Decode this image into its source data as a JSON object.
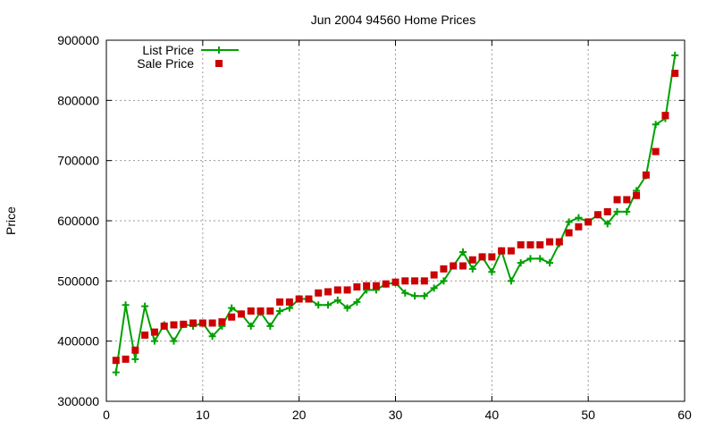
{
  "chart_data": {
    "type": "line",
    "title": "Jun 2004 94560 Home Prices",
    "xlabel": "",
    "ylabel": "Price",
    "xlim": [
      0,
      60
    ],
    "ylim": [
      300000,
      900000
    ],
    "x_ticks": [
      0,
      10,
      20,
      30,
      40,
      50,
      60
    ],
    "y_ticks": [
      300000,
      400000,
      500000,
      600000,
      700000,
      800000,
      900000
    ],
    "grid": true,
    "legend_position": "top-left",
    "series": [
      {
        "name": "List Price",
        "style": "line-plus",
        "color": "#00a000",
        "x": [
          1,
          2,
          3,
          4,
          5,
          6,
          7,
          8,
          9,
          10,
          11,
          12,
          13,
          14,
          15,
          16,
          17,
          18,
          19,
          20,
          21,
          22,
          23,
          24,
          25,
          26,
          27,
          28,
          29,
          30,
          31,
          32,
          33,
          34,
          35,
          36,
          37,
          38,
          39,
          40,
          41,
          42,
          43,
          44,
          45,
          46,
          47,
          48,
          49,
          50,
          51,
          52,
          53,
          54,
          55,
          56,
          57,
          58,
          59
        ],
        "y": [
          348000,
          460000,
          370000,
          458000,
          400000,
          427000,
          400000,
          428000,
          425000,
          430000,
          408000,
          425000,
          455000,
          445000,
          425000,
          448000,
          425000,
          450000,
          455000,
          470000,
          470000,
          460000,
          460000,
          468000,
          455000,
          465000,
          485000,
          485000,
          495000,
          497000,
          480000,
          475000,
          475000,
          488000,
          500000,
          525000,
          548000,
          520000,
          540000,
          515000,
          550000,
          500000,
          530000,
          537000,
          537000,
          530000,
          562000,
          598000,
          605000,
          598000,
          610000,
          595000,
          615000,
          615000,
          650000,
          675000,
          760000,
          770000,
          875000
        ]
      },
      {
        "name": "Sale Price",
        "style": "points-square",
        "color": "#cc0000",
        "x": [
          1,
          2,
          3,
          4,
          5,
          6,
          7,
          8,
          9,
          10,
          11,
          12,
          13,
          14,
          15,
          16,
          17,
          18,
          19,
          20,
          21,
          22,
          23,
          24,
          25,
          26,
          27,
          28,
          29,
          30,
          31,
          32,
          33,
          34,
          35,
          36,
          37,
          38,
          39,
          40,
          41,
          42,
          43,
          44,
          45,
          46,
          47,
          48,
          49,
          50,
          51,
          52,
          53,
          54,
          55,
          56,
          57,
          58,
          59
        ],
        "y": [
          368000,
          370000,
          385000,
          410000,
          415000,
          425000,
          427000,
          428000,
          430000,
          430000,
          430000,
          432000,
          440000,
          445000,
          450000,
          450000,
          450000,
          465000,
          465000,
          470000,
          470000,
          480000,
          482000,
          485000,
          485000,
          490000,
          492000,
          492000,
          495000,
          498000,
          500000,
          500000,
          500000,
          510000,
          520000,
          525000,
          525000,
          535000,
          540000,
          540000,
          550000,
          550000,
          560000,
          560000,
          560000,
          565000,
          565000,
          580000,
          590000,
          598000,
          610000,
          615000,
          635000,
          635000,
          642000,
          676000,
          715000,
          775000,
          845000
        ]
      }
    ]
  }
}
